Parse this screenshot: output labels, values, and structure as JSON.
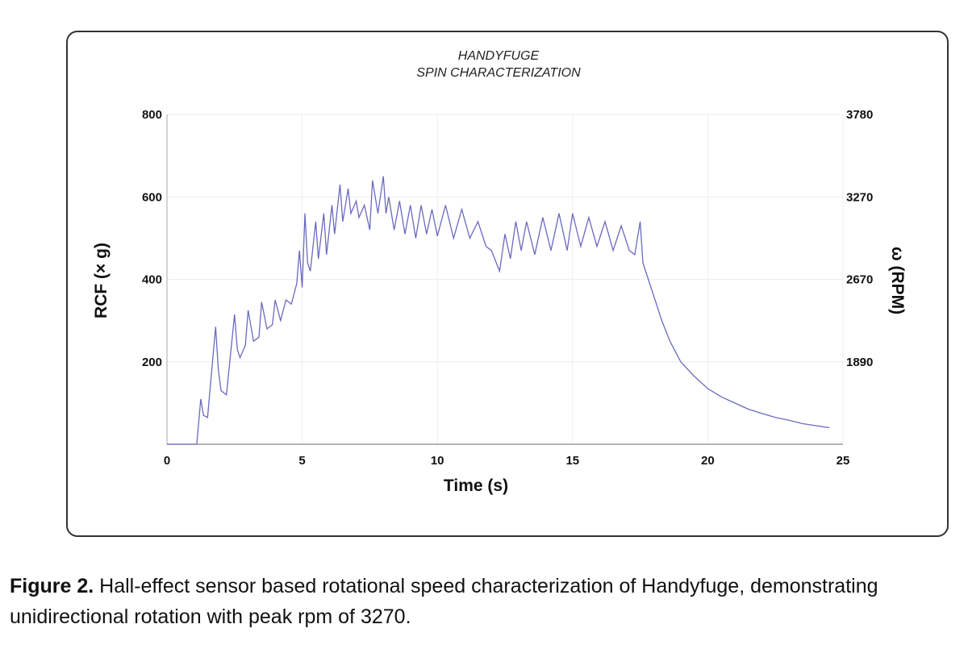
{
  "chart_data": {
    "type": "line",
    "title": "HANDYFUGE",
    "subtitle": "SPIN CHARACTERIZATION",
    "xlabel": "Time (s)",
    "ylabel": "RCF (× g)",
    "y2label": "ω (RPM)",
    "xlim": [
      0,
      25
    ],
    "ylim": [
      0,
      800
    ],
    "xticks": [
      "0",
      "5",
      "10",
      "15",
      "20",
      "25"
    ],
    "yticks": [
      "200",
      "400",
      "600",
      "800"
    ],
    "y2ticks": [
      "1890",
      "2670",
      "3270",
      "3780"
    ],
    "grid": true,
    "line_color": "#6a6ac0",
    "series": [
      {
        "x": [
          0,
          1.1,
          1.25,
          1.35,
          1.5,
          1.8,
          1.9,
          2.0,
          2.2,
          2.5,
          2.6,
          2.7,
          2.9,
          3.0,
          3.2,
          3.4,
          3.5,
          3.7,
          3.9,
          4.0,
          4.2,
          4.4,
          4.6,
          4.8,
          4.9,
          5.0,
          5.1,
          5.2,
          5.3,
          5.5,
          5.6,
          5.8,
          5.9,
          6.1,
          6.2,
          6.4,
          6.5,
          6.7,
          6.8,
          7.0,
          7.1,
          7.3,
          7.5,
          7.6,
          7.8,
          8.0,
          8.1,
          8.2,
          8.4,
          8.6,
          8.8,
          9.0,
          9.2,
          9.4,
          9.6,
          9.8,
          10.0,
          10.3,
          10.6,
          10.9,
          11.2,
          11.5,
          11.8,
          12.0,
          12.3,
          12.5,
          12.7,
          12.9,
          13.1,
          13.3,
          13.6,
          13.9,
          14.2,
          14.5,
          14.8,
          15.0,
          15.3,
          15.6,
          15.9,
          16.2,
          16.5,
          16.8,
          17.1,
          17.3,
          17.5,
          17.6,
          17.8,
          18.0,
          18.3,
          18.6,
          19.0,
          19.5,
          20.0,
          20.5,
          21.0,
          21.5,
          22.0,
          22.5,
          23.0,
          23.5,
          24.0,
          24.5
        ],
        "values": [
          0,
          0,
          110,
          70,
          65,
          285,
          180,
          130,
          120,
          315,
          230,
          210,
          240,
          325,
          250,
          260,
          345,
          280,
          290,
          350,
          300,
          350,
          340,
          390,
          470,
          380,
          560,
          440,
          420,
          540,
          450,
          560,
          460,
          580,
          510,
          630,
          540,
          620,
          560,
          590,
          550,
          580,
          520,
          640,
          560,
          650,
          560,
          600,
          520,
          590,
          510,
          580,
          500,
          580,
          510,
          570,
          505,
          580,
          500,
          570,
          500,
          540,
          480,
          470,
          420,
          510,
          450,
          540,
          470,
          540,
          460,
          550,
          470,
          560,
          470,
          560,
          480,
          550,
          480,
          540,
          470,
          530,
          470,
          460,
          540,
          440,
          400,
          360,
          300,
          250,
          200,
          165,
          135,
          115,
          100,
          85,
          75,
          65,
          58,
          50,
          45,
          40
        ]
      }
    ]
  },
  "caption": {
    "label": "Figure 2.",
    "text": "Hall-effect sensor based rotational speed characterization of Handyfuge, demonstrating unidirectional rotation with peak rpm of 3270."
  }
}
